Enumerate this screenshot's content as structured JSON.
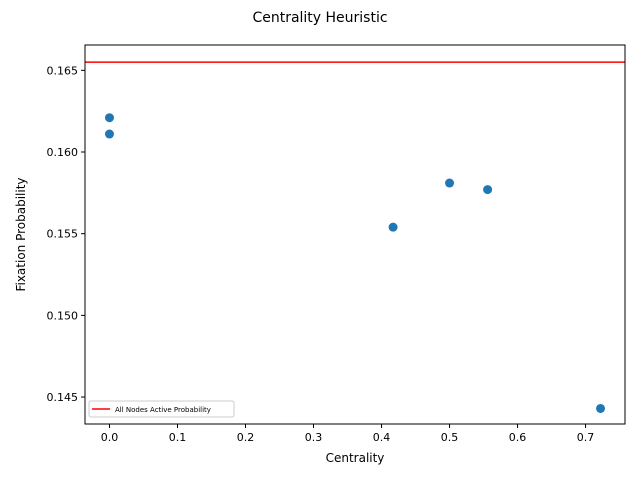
{
  "chart_data": {
    "type": "scatter",
    "title": "Centrality Heuristic",
    "xlabel": "Centrality",
    "ylabel": "Fixation Probability",
    "xlim": [
      -0.036,
      0.758
    ],
    "ylim": [
      0.14335,
      0.16655
    ],
    "xticks": [
      0.0,
      0.1,
      0.2,
      0.3,
      0.4,
      0.5,
      0.6,
      0.7
    ],
    "xtick_labels": [
      "0.0",
      "0.1",
      "0.2",
      "0.3",
      "0.4",
      "0.5",
      "0.6",
      "0.7"
    ],
    "yticks": [
      0.145,
      0.15,
      0.155,
      0.16,
      0.165
    ],
    "ytick_labels": [
      "0.145",
      "0.150",
      "0.155",
      "0.160",
      "0.165"
    ],
    "grid": false,
    "legend_position": "lower-left",
    "series": [
      {
        "type": "scatter",
        "color": "#1f77b4",
        "points": [
          {
            "x": 0.0,
            "y": 0.1621
          },
          {
            "x": 0.0,
            "y": 0.1611
          },
          {
            "x": 0.417,
            "y": 0.1554
          },
          {
            "x": 0.5,
            "y": 0.1581
          },
          {
            "x": 0.556,
            "y": 0.1577
          },
          {
            "x": 0.722,
            "y": 0.1443
          }
        ]
      },
      {
        "type": "hline",
        "name": "All Nodes Active Probability",
        "color": "#ff0000",
        "y": 0.1655
      }
    ]
  }
}
